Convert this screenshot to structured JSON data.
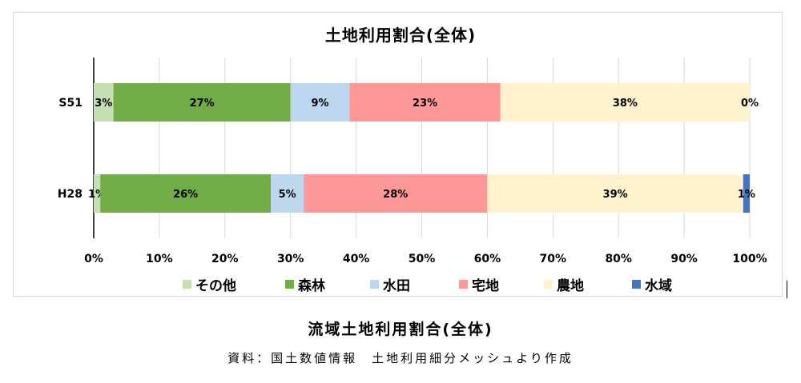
{
  "chart_data": {
    "type": "bar",
    "orientation": "horizontal",
    "stacked": true,
    "title": "土地利用割合(全体)",
    "categories": [
      "S51",
      "H28"
    ],
    "series": [
      {
        "name": "その他",
        "color": "#c6e0b4",
        "values": [
          3,
          1
        ],
        "labels": [
          "3%",
          "1%"
        ]
      },
      {
        "name": "森林",
        "color": "#70ad47",
        "values": [
          27,
          26
        ],
        "labels": [
          "27%",
          "26%"
        ]
      },
      {
        "name": "水田",
        "color": "#bdd7ee",
        "values": [
          9,
          5
        ],
        "labels": [
          "9%",
          "5%"
        ]
      },
      {
        "name": "宅地",
        "color": "#ff9999",
        "values": [
          23,
          28
        ],
        "labels": [
          "23%",
          "28%"
        ]
      },
      {
        "name": "農地",
        "color": "#fff2cc",
        "values": [
          38,
          39
        ],
        "labels": [
          "38%",
          "39%"
        ]
      },
      {
        "name": "水域",
        "color": "#4472c4",
        "values": [
          0,
          1
        ],
        "labels": [
          "0%",
          "1%"
        ]
      }
    ],
    "xlim": [
      0,
      100
    ],
    "xticks": [
      "0%",
      "10%",
      "20%",
      "30%",
      "40%",
      "50%",
      "60%",
      "70%",
      "80%",
      "90%",
      "100%"
    ],
    "grid": true,
    "legend": "bottom"
  },
  "caption": "流域土地利用割合(全体)",
  "source": "資料：国土数値情報　土地利用細分メッシュより作成"
}
